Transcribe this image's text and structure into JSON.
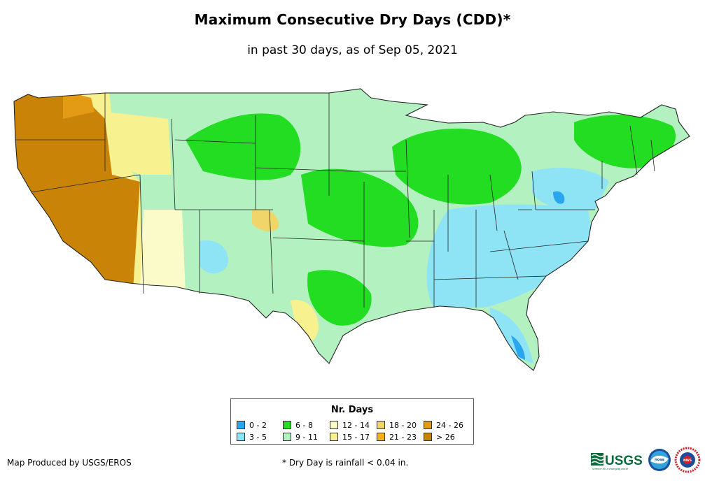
{
  "title": "Maximum Consecutive Dry Days (CDD)*",
  "subtitle": "in past 30 days, as of Sep 05, 2021",
  "legend": {
    "title": "Nr. Days",
    "items": [
      {
        "label": "0 - 2",
        "color": "#29a6ee"
      },
      {
        "label": "3 - 5",
        "color": "#8ee3f5"
      },
      {
        "label": "6 - 8",
        "color": "#22dd22"
      },
      {
        "label": "9 - 11",
        "color": "#b3f2c0"
      },
      {
        "label": "12 - 14",
        "color": "#fbfbca"
      },
      {
        "label": "15 - 17",
        "color": "#f7f190"
      },
      {
        "label": "18 - 20",
        "color": "#f0d66a"
      },
      {
        "label": "21 - 23",
        "color": "#f2b416"
      },
      {
        "label": "24 - 26",
        "color": "#e39b15"
      },
      {
        "label": "> 26",
        "color": "#c98408"
      }
    ]
  },
  "credit": "Map Produced by USGS/EROS",
  "footnote": "* Dry Day is rainfall < 0.04 in.",
  "logos": {
    "usgs": "USGS",
    "usgs_tagline": "science for a changing world",
    "noaa": "noaa",
    "nws": "NWS"
  }
}
